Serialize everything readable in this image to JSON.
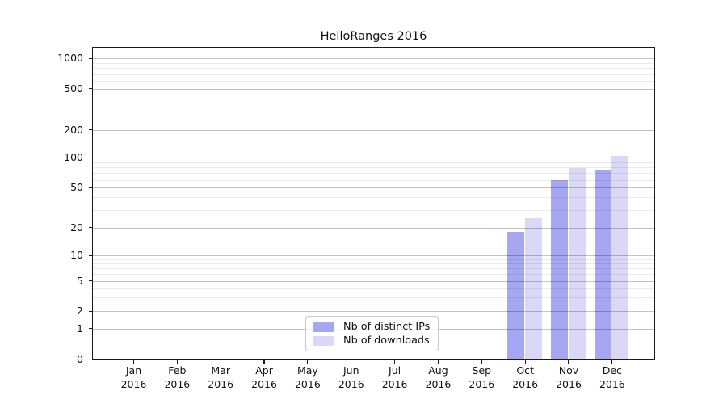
{
  "title": "HelloRanges 2016",
  "chart_data": {
    "type": "bar",
    "title": "HelloRanges 2016",
    "x_categories": [
      "Jan",
      "Feb",
      "Mar",
      "Apr",
      "May",
      "Jun",
      "Jul",
      "Aug",
      "Sep",
      "Oct",
      "Nov",
      "Dec"
    ],
    "x_year": "2016",
    "y_ticks": [
      0,
      1,
      2,
      5,
      10,
      20,
      50,
      100,
      200,
      500,
      1000
    ],
    "y_scale": "symlog",
    "ylim": [
      0,
      1200
    ],
    "grid": true,
    "legend_position": "lower-center",
    "series": [
      {
        "name": "Nb of distinct IPs",
        "color": "#a6a6f2",
        "values": [
          0,
          0,
          0,
          0,
          0,
          0,
          0,
          0,
          0,
          18,
          59,
          74
        ]
      },
      {
        "name": "Nb of downloads",
        "color": "#d9d9f7",
        "values": [
          0,
          0,
          0,
          0,
          0,
          0,
          0,
          0,
          0,
          25,
          79,
          104
        ]
      }
    ]
  },
  "colors": {
    "grid_major": "rgba(0,0,0,0.24)",
    "grid_minor": "rgba(0,0,0,0.08)",
    "axis": "#1a1a1a",
    "text": "#111111"
  }
}
